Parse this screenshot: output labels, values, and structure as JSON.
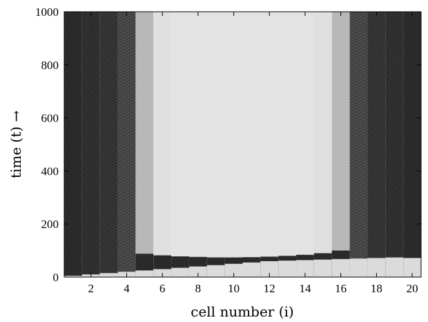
{
  "chart_data": {
    "type": "heatmap",
    "xlabel": "cell number (i)",
    "ylabel": "time (t) →",
    "xlim": [
      0.5,
      20.5
    ],
    "ylim": [
      0,
      1000
    ],
    "xticks": [
      2,
      4,
      6,
      8,
      10,
      12,
      14,
      16,
      18,
      20
    ],
    "yticks": [
      0,
      200,
      400,
      600,
      800,
      1000
    ],
    "grayscale": "dark = low value, light = high value",
    "cells": [
      1,
      2,
      3,
      4,
      5,
      6,
      7,
      8,
      9,
      10,
      11,
      12,
      13,
      14,
      15,
      16,
      17,
      18,
      19,
      20
    ],
    "steady_state_gray": [
      0.18,
      0.2,
      0.22,
      0.3,
      0.72,
      0.88,
      0.89,
      0.89,
      0.89,
      0.89,
      0.89,
      0.89,
      0.89,
      0.89,
      0.88,
      0.72,
      0.3,
      0.22,
      0.2,
      0.18
    ],
    "transition_time": [
      null,
      null,
      null,
      null,
      88,
      82,
      78,
      76,
      74,
      74,
      75,
      77,
      80,
      84,
      90,
      100,
      null,
      null,
      null,
      null
    ],
    "early_front_time": [
      5,
      10,
      15,
      20,
      25,
      30,
      35,
      40,
      45,
      50,
      55,
      60,
      62,
      64,
      66,
      68,
      70,
      72,
      74,
      72
    ]
  }
}
